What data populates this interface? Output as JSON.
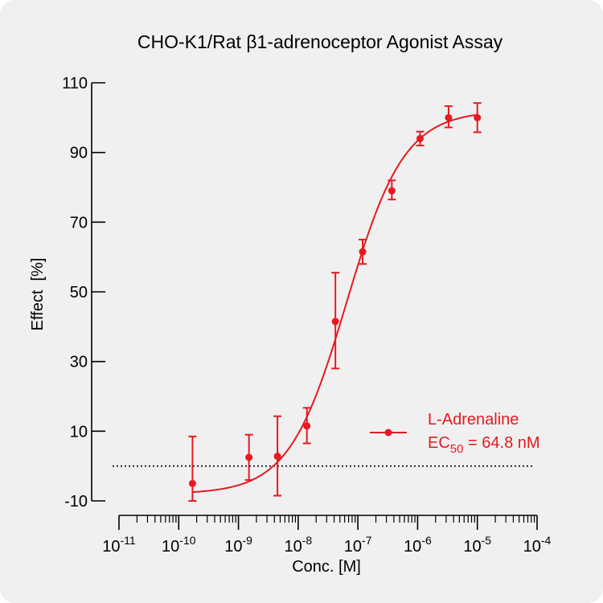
{
  "chart_data": {
    "type": "scatter",
    "title": "CHO-K1/Rat β1-adrenoceptor Agonist Assay",
    "xlabel": "Conc. [M]",
    "ylabel": "Effect  [%]",
    "xscale": "log",
    "xlim": [
      1e-11,
      0.0001
    ],
    "ylim": [
      -10,
      110
    ],
    "y_ticks": [
      "-10",
      "10",
      "30",
      "50",
      "70",
      "90",
      "110"
    ],
    "y_tick_values": [
      -10,
      10,
      30,
      50,
      70,
      90,
      110
    ],
    "x_tick_exponents": [
      "-11",
      "-10",
      "-9",
      "-8",
      "-7",
      "-6",
      "-5",
      "-4"
    ],
    "x_tick_base": "10",
    "baseline": 0,
    "grid": false,
    "legend_position": "right",
    "series": [
      {
        "name": "L-Adrenaline",
        "color": "#e8191f",
        "x": [
          1.7e-10,
          1.5e-09,
          4.5e-09,
          1.4e-08,
          4.2e-08,
          1.2e-07,
          3.7e-07,
          1.1e-06,
          3.3e-06,
          1e-05
        ],
        "y": [
          -5,
          2.5,
          2.8,
          11.5,
          41.5,
          61.5,
          79,
          94,
          100,
          100
        ],
        "err_low": [
          -10,
          -4,
          -8.5,
          6.5,
          28,
          58,
          76.5,
          92,
          97.2,
          95.8
        ],
        "err_high": [
          8.5,
          9,
          14.3,
          16.7,
          55.5,
          65,
          82,
          96,
          103.3,
          104.2
        ],
        "fit": {
          "bottom": -8,
          "top": 102,
          "ec50": 6.48e-08,
          "hill": 0.9
        },
        "ec50_prefix": "EC",
        "ec50_subscript": "50",
        "ec50_value": " = 64.8 nM"
      }
    ]
  }
}
